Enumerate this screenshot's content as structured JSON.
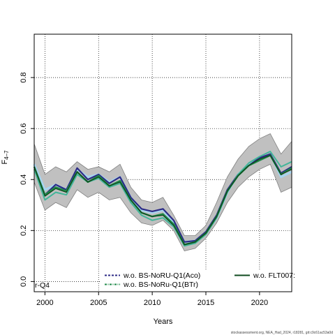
{
  "chart_data": {
    "type": "line",
    "xlabel": "Years",
    "ylabel_main": "F",
    "ylabel_sub": "4–7",
    "xlim": [
      1999,
      2023
    ],
    "ylim": [
      -0.04,
      0.97
    ],
    "xticks": [
      2000,
      2005,
      2010,
      2015,
      2020
    ],
    "yticks": [
      0.0,
      0.2,
      0.4,
      0.6,
      0.8
    ],
    "ytick_labels": [
      "0.0",
      "0.2",
      "0.4",
      "0.6",
      "0.8"
    ],
    "grid": true,
    "colors": {
      "band": "#c0c0c0",
      "band_edge": "#7f7f7f",
      "lightblue": "#a6d4f0",
      "darkblue": "#2c2a85",
      "teal": "#43b59a",
      "green": "#1f8a48",
      "darkgreen": "#0f4a1f"
    },
    "x": [
      1999,
      2000,
      2001,
      2002,
      2003,
      2004,
      2005,
      2006,
      2007,
      2008,
      2009,
      2010,
      2011,
      2012,
      2013,
      2014,
      2015,
      2016,
      2017,
      2018,
      2019,
      2020,
      2021,
      2022,
      2023
    ],
    "band": {
      "upper": [
        0.54,
        0.42,
        0.45,
        0.43,
        0.47,
        0.44,
        0.45,
        0.43,
        0.46,
        0.37,
        0.32,
        0.31,
        0.33,
        0.26,
        0.18,
        0.18,
        0.22,
        0.31,
        0.41,
        0.48,
        0.53,
        0.56,
        0.58,
        0.5,
        0.55
      ],
      "lower": [
        0.39,
        0.28,
        0.31,
        0.29,
        0.36,
        0.33,
        0.35,
        0.32,
        0.33,
        0.27,
        0.23,
        0.22,
        0.24,
        0.2,
        0.12,
        0.13,
        0.17,
        0.23,
        0.31,
        0.37,
        0.41,
        0.44,
        0.46,
        0.35,
        0.37
      ]
    },
    "series": [
      {
        "key": "lightblue",
        "values": [
          0.46,
          0.36,
          0.38,
          0.36,
          0.44,
          0.41,
          0.42,
          0.39,
          0.41,
          0.33,
          0.28,
          0.27,
          0.28,
          0.23,
          0.155,
          0.16,
          0.19,
          0.25,
          0.35,
          0.42,
          0.46,
          0.48,
          0.5,
          0.41,
          0.43
        ]
      },
      {
        "key": "darkblue",
        "values": [
          0.45,
          0.34,
          0.38,
          0.36,
          0.445,
          0.4,
          0.42,
          0.385,
          0.41,
          0.33,
          0.285,
          0.275,
          0.285,
          0.24,
          0.155,
          0.16,
          0.195,
          0.26,
          0.36,
          0.42,
          0.455,
          0.485,
          0.5,
          0.425,
          0.45
        ]
      },
      {
        "key": "teal",
        "values": [
          0.44,
          0.32,
          0.35,
          0.34,
          0.42,
          0.39,
          0.405,
          0.37,
          0.385,
          0.31,
          0.26,
          0.24,
          0.25,
          0.215,
          0.14,
          0.15,
          0.185,
          0.25,
          0.35,
          0.42,
          0.465,
          0.49,
          0.51,
          0.45,
          0.47
        ]
      },
      {
        "key": "green",
        "values": [
          0.45,
          0.34,
          0.37,
          0.355,
          0.43,
          0.39,
          0.415,
          0.375,
          0.395,
          0.32,
          0.27,
          0.255,
          0.265,
          0.225,
          0.145,
          0.155,
          0.19,
          0.255,
          0.355,
          0.415,
          0.455,
          0.475,
          0.495,
          0.42,
          0.445
        ]
      },
      {
        "key": "darkgreen",
        "values": [
          0.45,
          0.335,
          0.365,
          0.35,
          0.43,
          0.39,
          0.41,
          0.375,
          0.39,
          0.32,
          0.27,
          0.255,
          0.26,
          0.22,
          0.145,
          0.155,
          0.19,
          0.255,
          0.355,
          0.415,
          0.455,
          0.48,
          0.495,
          0.42,
          0.44
        ]
      }
    ],
    "legend": [
      {
        "label": "w.o. BS-NoRU-Q1(Aco)",
        "color": "#2c2a85",
        "dash": "3,2"
      },
      {
        "label": "w.o. BS-NoRu-Q1(BTr)",
        "color": "#1f8a48",
        "dash": "3,1.5,1,1.5"
      },
      {
        "label": "w.o. FLT007:",
        "color": "#0f4a1f",
        "dash": ""
      }
    ],
    "legend_fragment": "r-Q4",
    "footer": "stockassessment.org, NEA_Had_2024, r18281, git:c9c61ac53a0d"
  }
}
